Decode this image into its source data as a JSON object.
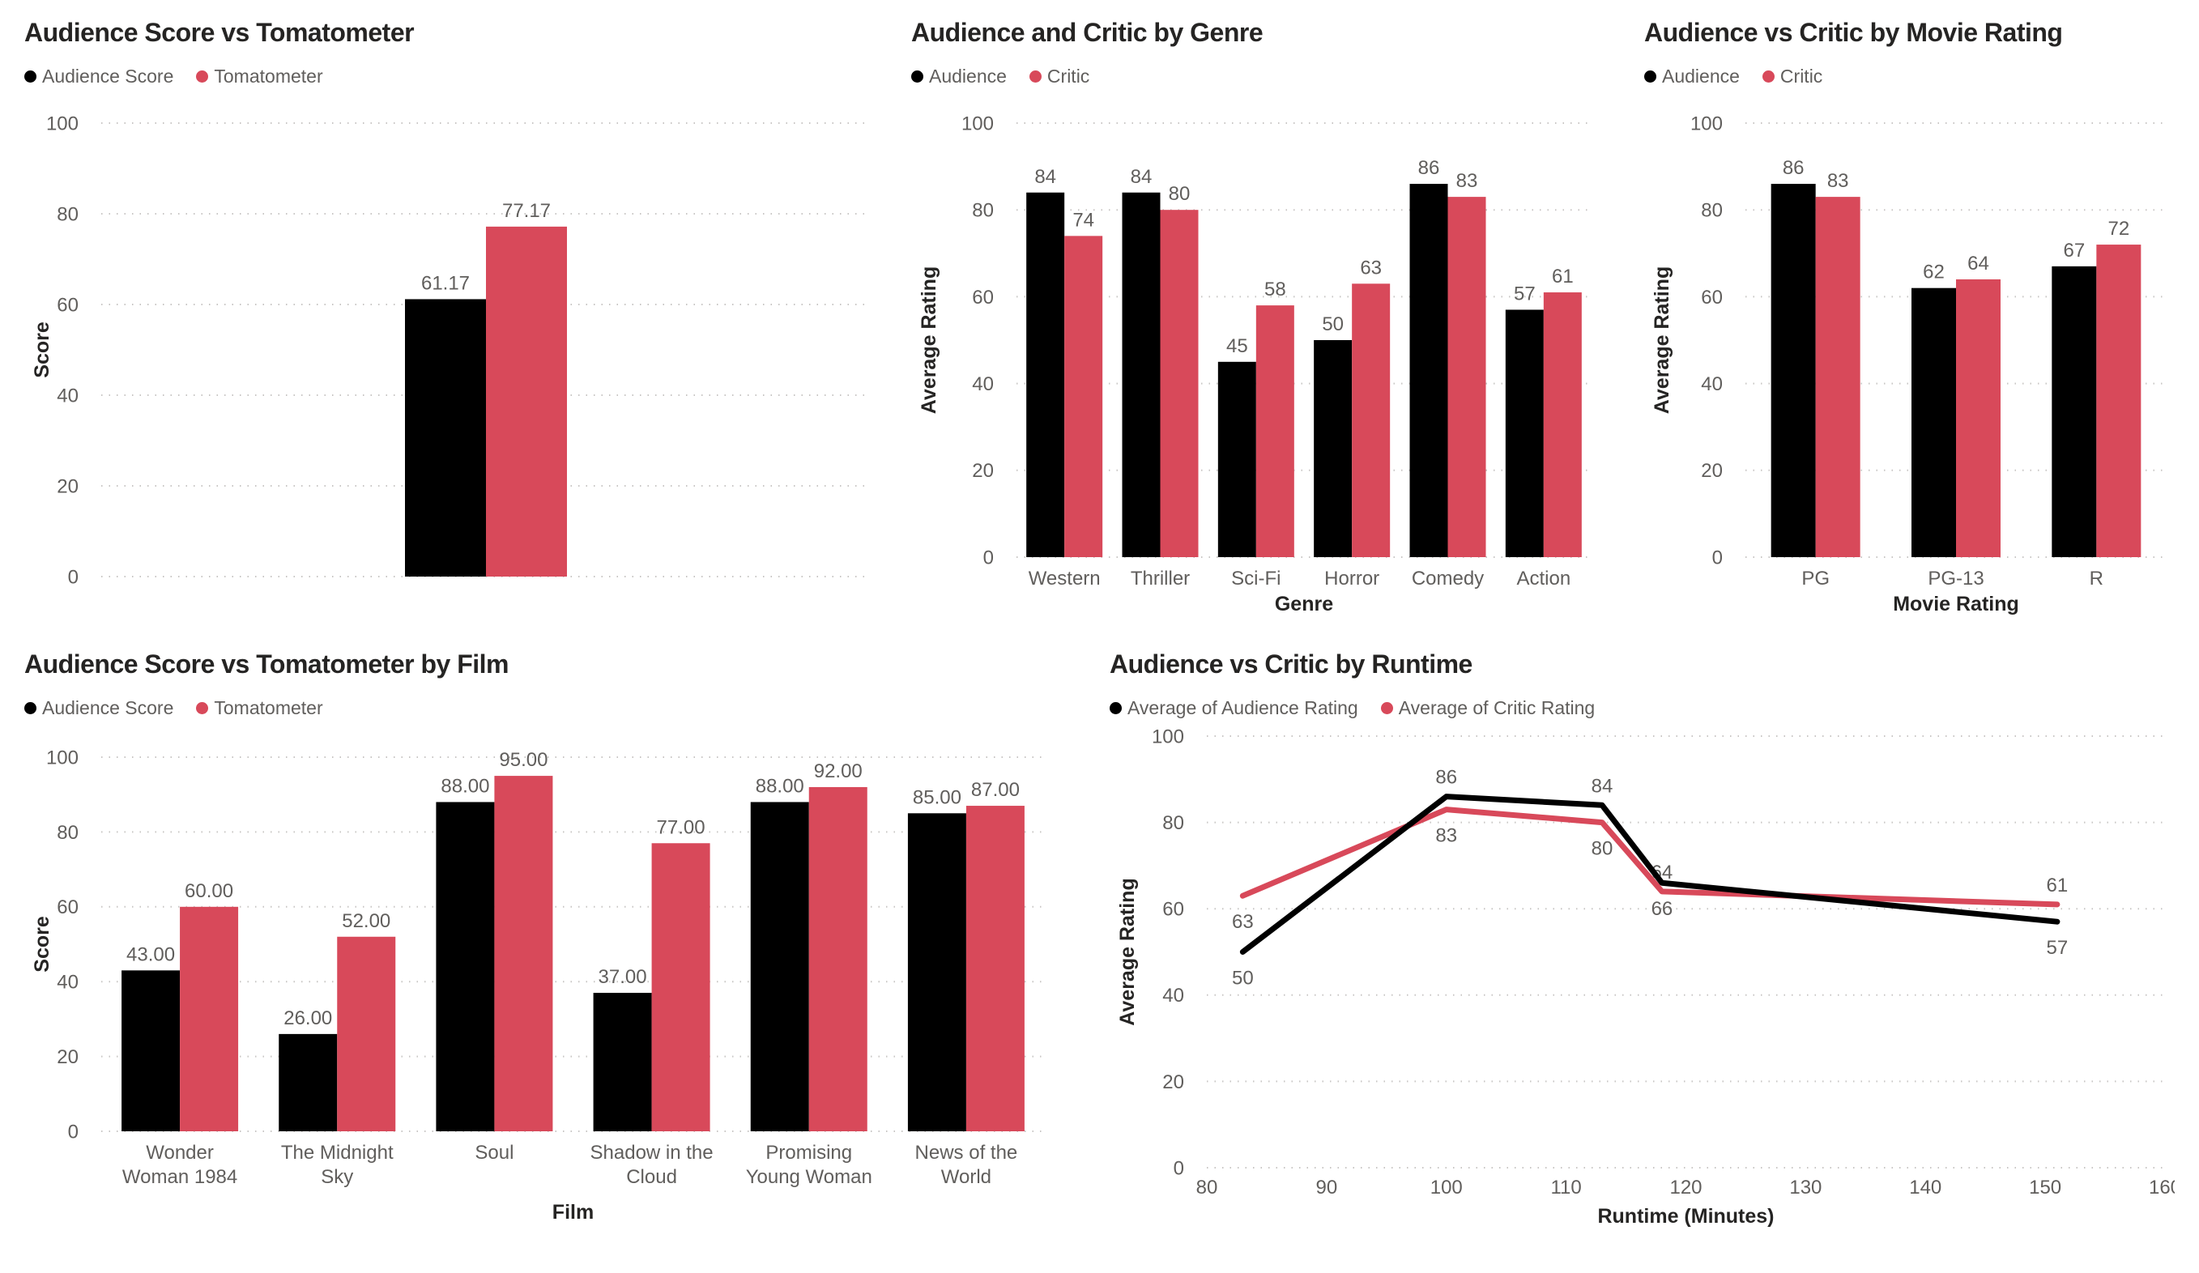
{
  "page": {
    "background": "#FFFFFF"
  },
  "colors": {
    "audience_black": "#000000",
    "critic_red": "#D8495A",
    "gridline": "#C8C6C4",
    "text_secondary": "#605E5C",
    "text_primary": "#252423"
  },
  "chart_data": [
    {
      "id": "audience-score-vs-tomatometer",
      "type": "bar",
      "title": "Audience Score vs Tomatometer",
      "categories": [
        ""
      ],
      "series": [
        {
          "name": "Audience Score",
          "color": "#000000",
          "values": [
            61.17
          ]
        },
        {
          "name": "Tomatometer",
          "color": "#D8495A",
          "values": [
            77.17
          ]
        }
      ],
      "xlabel": "",
      "ylabel": "Score",
      "ylim": [
        0,
        100
      ],
      "yticks": [
        0,
        20,
        40,
        60,
        80,
        100
      ],
      "value_decimals": 2,
      "grid": "dotted-horizontal",
      "legend_position": "top-left"
    },
    {
      "id": "audience-and-critic-by-genre",
      "type": "bar",
      "title": "Audience and Critic by Genre",
      "categories": [
        "Western",
        "Thriller",
        "Sci-Fi",
        "Horror",
        "Comedy",
        "Action"
      ],
      "series": [
        {
          "name": "Audience",
          "color": "#000000",
          "values": [
            84,
            84,
            45,
            50,
            86,
            57
          ]
        },
        {
          "name": "Critic",
          "color": "#D8495A",
          "values": [
            74,
            80,
            58,
            63,
            83,
            61
          ]
        }
      ],
      "xlabel": "Genre",
      "ylabel": "Average Rating",
      "ylim": [
        0,
        100
      ],
      "yticks": [
        0,
        20,
        40,
        60,
        80,
        100
      ],
      "value_decimals": 0,
      "grid": "dotted-horizontal",
      "legend_position": "top-left"
    },
    {
      "id": "audience-vs-critic-by-movie-rating",
      "type": "bar",
      "title": "Audience vs Critic by Movie Rating",
      "categories": [
        "PG",
        "PG-13",
        "R"
      ],
      "series": [
        {
          "name": "Audience",
          "color": "#000000",
          "values": [
            86,
            62,
            67
          ]
        },
        {
          "name": "Critic",
          "color": "#D8495A",
          "values": [
            83,
            64,
            72
          ]
        }
      ],
      "xlabel": "Movie Rating",
      "ylabel": "Average Rating",
      "ylim": [
        0,
        100
      ],
      "yticks": [
        0,
        20,
        40,
        60,
        80,
        100
      ],
      "value_decimals": 0,
      "grid": "dotted-horizontal",
      "legend_position": "top-left"
    },
    {
      "id": "audience-score-vs-tomatometer-by-film",
      "type": "bar",
      "title": "Audience Score vs Tomatometer by Film",
      "categories": [
        "Wonder Woman 1984",
        "The Midnight Sky",
        "Soul",
        "Shadow in the Cloud",
        "Promising Young Woman",
        "News of the World"
      ],
      "series": [
        {
          "name": "Audience Score",
          "color": "#000000",
          "values": [
            43,
            26,
            88,
            37,
            88,
            85
          ]
        },
        {
          "name": "Tomatometer",
          "color": "#D8495A",
          "values": [
            60,
            52,
            95,
            77,
            92,
            87
          ]
        }
      ],
      "xlabel": "Film",
      "ylabel": "Score",
      "ylim": [
        0,
        100
      ],
      "yticks": [
        0,
        20,
        40,
        60,
        80,
        100
      ],
      "value_decimals": 2,
      "grid": "dotted-horizontal",
      "legend_position": "top-left"
    },
    {
      "id": "audience-vs-critic-by-runtime",
      "type": "line",
      "title": "Audience vs Critic by Runtime",
      "x": [
        83,
        100,
        113,
        118,
        151
      ],
      "series": [
        {
          "name": "Average of Audience Rating",
          "color": "#000000",
          "values": [
            50,
            86,
            84,
            66,
            57
          ],
          "label_side": [
            "below",
            "above",
            "above",
            "below",
            "below"
          ]
        },
        {
          "name": "Average of Critic Rating",
          "color": "#D8495A",
          "values": [
            63,
            83,
            80,
            64,
            61
          ],
          "label_side": [
            "below",
            "below",
            "below",
            "above",
            "above"
          ]
        }
      ],
      "xlabel": "Runtime (Minutes)",
      "ylabel": "Average Rating",
      "xlim": [
        80,
        160
      ],
      "xticks": [
        80,
        90,
        100,
        110,
        120,
        130,
        140,
        150,
        160
      ],
      "ylim": [
        0,
        100
      ],
      "yticks": [
        0,
        20,
        40,
        60,
        80,
        100
      ],
      "grid": "dotted-horizontal",
      "legend_position": "top-left"
    }
  ]
}
